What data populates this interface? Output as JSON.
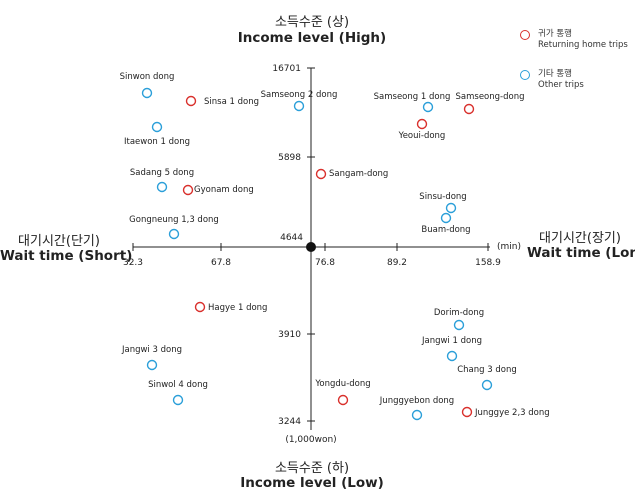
{
  "chart_data": {
    "type": "scatter",
    "title_top_ko": "소득수준 (상)",
    "title_top_en": "Income level (High)",
    "title_bottom_ko": "소득수준 (하)",
    "title_bottom_en": "Income level (Low)",
    "title_left_ko": "대기시간(단기)",
    "title_left_en": "Wait time (Short)",
    "title_right_ko": "대기시간(장기)",
    "title_right_en": "Wait time (Long)",
    "x_unit": "(min)",
    "y_unit": "(1,000won)",
    "origin_label": "4644",
    "x_tick_labels": [
      "32.3",
      "67.8",
      "76.8",
      "89.2",
      "158.9"
    ],
    "y_tick_labels": [
      "16701",
      "5898",
      "3910",
      "3244"
    ],
    "legend": [
      {
        "ko": "귀가 통행",
        "en": "Returning home trips",
        "color": "#d9302c"
      },
      {
        "ko": "기타 통행",
        "en": "Other trips",
        "color": "#2b9fd9"
      }
    ],
    "points": [
      {
        "name": "Sinwon dong",
        "series": "other"
      },
      {
        "name": "Sinsa 1 dong",
        "series": "home"
      },
      {
        "name": "Itaewon 1 dong",
        "series": "other"
      },
      {
        "name": "Samseong 2 dong",
        "series": "other"
      },
      {
        "name": "Samseong 1 dong",
        "series": "other"
      },
      {
        "name": "Samseong-dong",
        "series": "home"
      },
      {
        "name": "Yeoui-dong",
        "series": "home"
      },
      {
        "name": "Sadang 5 dong",
        "series": "other"
      },
      {
        "name": "Gyonam dong",
        "series": "home"
      },
      {
        "name": "Sangam-dong",
        "series": "home"
      },
      {
        "name": "Sinsu-dong",
        "series": "other"
      },
      {
        "name": "Buam-dong",
        "series": "other"
      },
      {
        "name": "Gongneung 1,3 dong",
        "series": "other"
      },
      {
        "name": "Hagye 1 dong",
        "series": "home"
      },
      {
        "name": "Dorim-dong",
        "series": "other"
      },
      {
        "name": "Jangwi 1 dong",
        "series": "other"
      },
      {
        "name": "Jangwi 3 dong",
        "series": "other"
      },
      {
        "name": "Chang 3 dong",
        "series": "other"
      },
      {
        "name": "Sinwol 4 dong",
        "series": "other"
      },
      {
        "name": "Yongdu-dong",
        "series": "home"
      },
      {
        "name": "Junggyebon dong",
        "series": "other"
      },
      {
        "name": "Junggye 2,3 dong",
        "series": "home"
      }
    ]
  }
}
